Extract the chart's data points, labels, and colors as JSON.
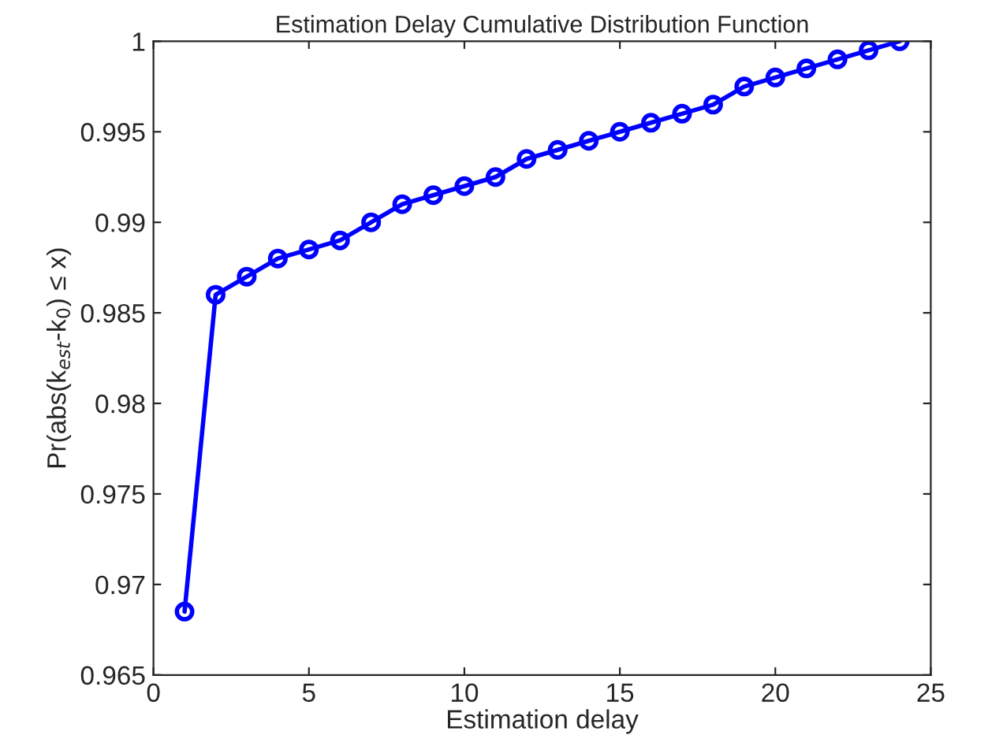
{
  "chart_data": {
    "type": "line",
    "title": "Estimation Delay Cumulative Distribution Function",
    "xlabel": "Estimation delay",
    "ylabel": "Pr(abs(k$_{est}$-k$_{0}$) ≤ x)",
    "x": [
      1,
      2,
      3,
      4,
      5,
      6,
      7,
      8,
      9,
      10,
      11,
      12,
      13,
      14,
      15,
      16,
      17,
      18,
      19,
      20,
      21,
      22,
      23,
      24
    ],
    "series": [
      {
        "color": "#0000ff",
        "values": [
          0.9685,
          0.986,
          0.987,
          0.988,
          0.9885,
          0.989,
          0.99,
          0.991,
          0.9915,
          0.992,
          0.9925,
          0.9935,
          0.994,
          0.9945,
          0.995,
          0.9955,
          0.996,
          0.9965,
          0.9975,
          0.998,
          0.9985,
          0.999,
          0.9995,
          1.0
        ]
      }
    ],
    "xlim": [
      0,
      25
    ],
    "xticks": [
      0,
      5,
      10,
      15,
      20,
      25
    ],
    "ylim": [
      0.965,
      1
    ],
    "yticks": [
      0.965,
      0.97,
      0.975,
      0.98,
      0.985,
      0.99,
      0.995,
      1
    ],
    "grid": false,
    "legend": false,
    "marker": "circle",
    "line_style": "solid"
  }
}
